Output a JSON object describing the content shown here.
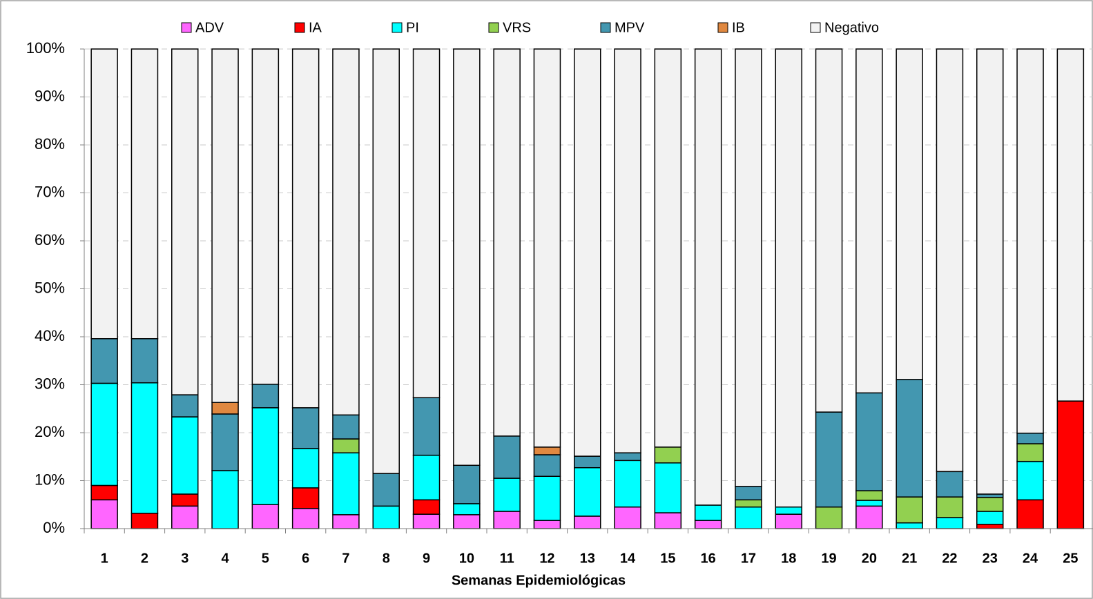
{
  "chart_data": {
    "type": "stacked_bar",
    "x_label": "Semanas Epidemiológicas",
    "categories": [
      "1",
      "2",
      "3",
      "4",
      "5",
      "6",
      "7",
      "8",
      "9",
      "10",
      "11",
      "12",
      "13",
      "14",
      "15",
      "16",
      "17",
      "18",
      "19",
      "20",
      "21",
      "22",
      "23",
      "24",
      "25"
    ],
    "series": [
      {
        "name": "ADV",
        "color": "#ff66ff",
        "values": [
          6.0,
          0,
          4.7,
          0,
          5.0,
          4.2,
          2.9,
          0,
          3.0,
          2.9,
          3.6,
          1.7,
          2.6,
          4.5,
          3.3,
          1.7,
          0,
          3.0,
          0,
          4.7,
          0,
          0,
          0,
          0,
          0
        ]
      },
      {
        "name": "IA",
        "color": "#ff0000",
        "values": [
          3.0,
          3.2,
          2.5,
          0,
          0,
          4.3,
          0,
          0,
          3.0,
          0,
          0,
          0,
          0,
          0,
          0,
          0,
          0,
          0,
          0,
          0,
          0,
          0,
          0.9,
          6.0,
          26.6
        ]
      },
      {
        "name": "PI",
        "color": "#00ffff",
        "values": [
          21.3,
          27.2,
          16.1,
          12.1,
          20.2,
          8.2,
          12.9,
          4.7,
          9.3,
          2.3,
          6.9,
          9.2,
          10.1,
          9.7,
          10.4,
          3.2,
          4.5,
          1.5,
          0,
          1.2,
          1.2,
          2.3,
          2.7,
          8.0,
          0
        ]
      },
      {
        "name": "VRS",
        "color": "#92d050",
        "values": [
          0,
          0,
          0,
          0,
          0,
          0,
          2.9,
          0,
          0,
          0,
          0,
          0,
          0,
          0,
          3.3,
          0,
          1.5,
          0,
          4.5,
          2.0,
          5.4,
          4.3,
          2.9,
          3.7,
          0
        ]
      },
      {
        "name": "MPV",
        "color": "#4397b0",
        "values": [
          9.3,
          9.2,
          4.6,
          11.8,
          4.9,
          8.5,
          5.0,
          6.8,
          12.0,
          8.0,
          8.8,
          4.5,
          2.4,
          1.6,
          0,
          0,
          2.8,
          0,
          19.8,
          20.4,
          24.5,
          5.3,
          0.7,
          2.2,
          0
        ]
      },
      {
        "name": "IB",
        "color": "#e08840",
        "values": [
          0,
          0,
          0,
          2.4,
          0,
          0,
          0,
          0,
          0,
          0,
          0,
          1.6,
          0,
          0,
          0,
          0,
          0,
          0,
          0,
          0,
          0,
          0,
          0,
          0,
          0
        ]
      },
      {
        "name": "Negativo",
        "color": "#f2f2f2",
        "values": [
          60.4,
          60.4,
          72.1,
          73.7,
          69.9,
          74.8,
          76.3,
          88.5,
          72.7,
          86.8,
          80.7,
          83.0,
          84.9,
          84.2,
          83.0,
          95.1,
          91.2,
          95.5,
          75.7,
          71.7,
          68.9,
          88.1,
          92.8,
          80.1,
          73.4
        ]
      }
    ],
    "ylim": [
      0,
      100
    ],
    "yticks": [
      {
        "value": 0,
        "label": "0%"
      },
      {
        "value": 10,
        "label": "10%"
      },
      {
        "value": 20,
        "label": "20%"
      },
      {
        "value": 30,
        "label": "30%"
      },
      {
        "value": 40,
        "label": "40%"
      },
      {
        "value": 50,
        "label": "50%"
      },
      {
        "value": 60,
        "label": "60%"
      },
      {
        "value": 70,
        "label": "70%"
      },
      {
        "value": 80,
        "label": "80%"
      },
      {
        "value": 90,
        "label": "90%"
      },
      {
        "value": 100,
        "label": "100%"
      }
    ],
    "grid": true,
    "legend": "top"
  }
}
